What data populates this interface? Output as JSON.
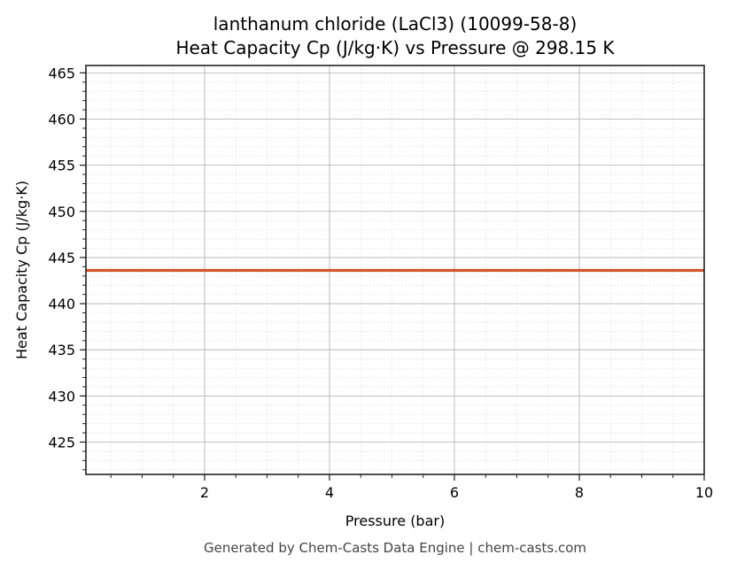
{
  "chart_data": {
    "type": "line",
    "title": "lanthanum chloride (LaCl3) (10099-58-8)",
    "subtitle": "Heat Capacity Cp (J/kg·K) vs Pressure @ 298.15 K",
    "xlabel": "Pressure (bar)",
    "ylabel": "Heat Capacity Cp (J/kg·K)",
    "xlim": [
      0.1,
      10
    ],
    "ylim": [
      421.5,
      465.8
    ],
    "x_ticks": [
      2,
      4,
      6,
      8,
      10
    ],
    "x_tick_labels": [
      "2",
      "4",
      "6",
      "8",
      "10"
    ],
    "x_minor_step": 0.5,
    "y_ticks": [
      425,
      430,
      435,
      440,
      445,
      450,
      455,
      460,
      465
    ],
    "y_tick_labels": [
      "425",
      "430",
      "435",
      "440",
      "445",
      "450",
      "455",
      "460",
      "465"
    ],
    "y_minor_step": 1,
    "grid": true,
    "legend": null,
    "series": [
      {
        "name": "Cp",
        "color": "#d4532a",
        "x": [
          0.1,
          10
        ],
        "y": [
          443.6,
          443.6
        ]
      }
    ]
  },
  "footer": "Generated by Chem-Casts Data Engine | chem-casts.com"
}
